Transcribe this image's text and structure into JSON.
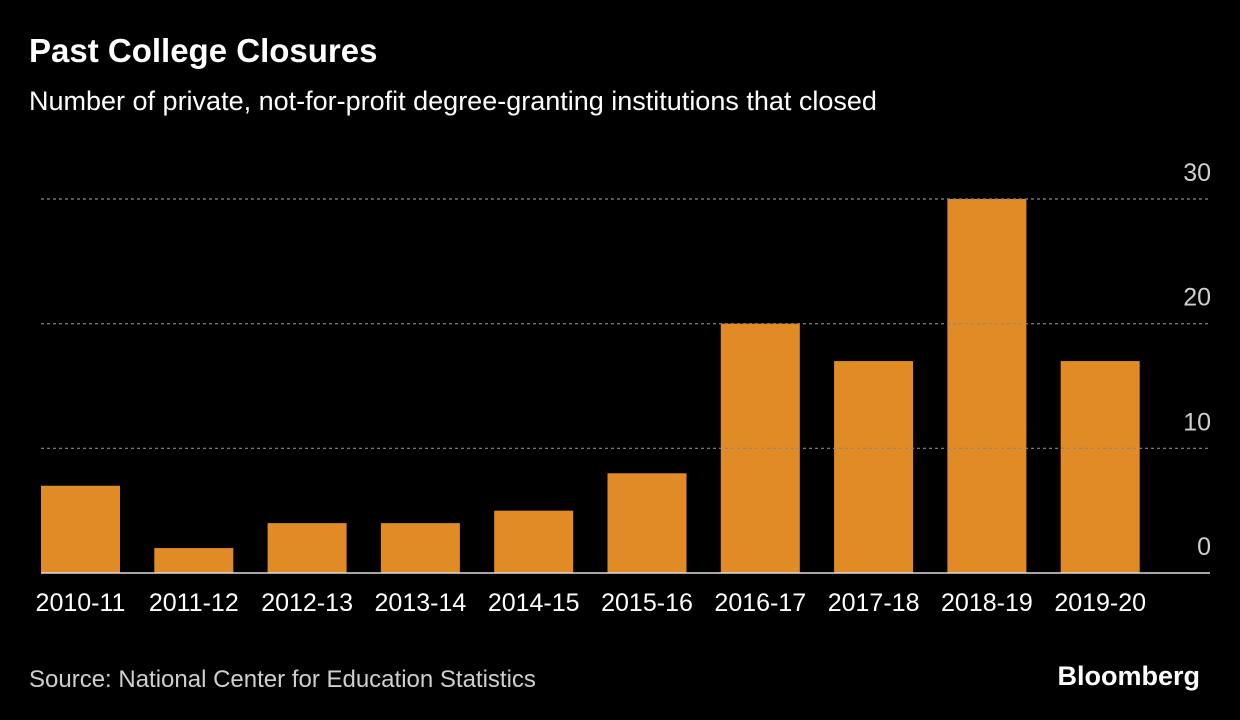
{
  "chart_data": {
    "type": "bar",
    "title": "Past College Closures",
    "subtitle": "Number of private, not-for-profit degree-granting institutions that closed",
    "categories": [
      "2010-11",
      "2011-12",
      "2012-13",
      "2013-14",
      "2014-15",
      "2015-16",
      "2016-17",
      "2017-18",
      "2018-19",
      "2019-20"
    ],
    "values": [
      7,
      2,
      4,
      4,
      5,
      8,
      20,
      17,
      30,
      17
    ],
    "color": "#e08b26",
    "ylim": [
      0,
      30
    ],
    "yticks": [
      0,
      10,
      20,
      30
    ],
    "grid": true,
    "source": "Source: National Center for Education Statistics",
    "brand": "Bloomberg"
  }
}
